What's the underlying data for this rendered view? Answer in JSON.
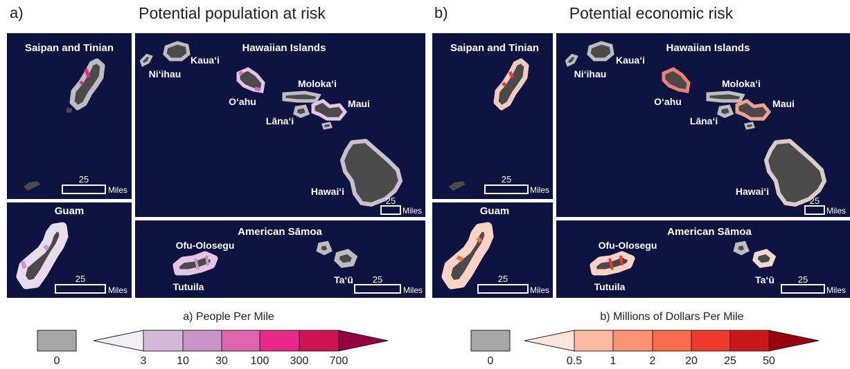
{
  "panels": [
    {
      "letter": "a)",
      "title": "Potential population at risk",
      "insets": {
        "saipan": "Saipan and Tinian",
        "guam": "Guam",
        "hawaii": "Hawaiian Islands",
        "samoa": "American Sāmoa"
      },
      "islands": [
        "Ni‘ihau",
        "Kaua‘i",
        "O‘ahu",
        "Moloka‘i",
        "Maui",
        "Lāna‘i",
        "Hawai‘i",
        "Ofu-Olosegu",
        "Tutuila",
        "Ta‘ū"
      ],
      "scale": {
        "value": "25",
        "unit": "Miles"
      },
      "legend": {
        "title": "a) People Per Mile",
        "zero_label": "0",
        "ticks": [
          "3",
          "10",
          "30",
          "100",
          "300",
          "700"
        ],
        "colors": [
          "#f3eef6",
          "#d4b8da",
          "#c994c7",
          "#df65b0",
          "#e7298a",
          "#ce1256",
          "#91003f"
        ]
      }
    },
    {
      "letter": "b)",
      "title": "Potential economic risk",
      "insets": {
        "saipan": "Saipan and Tinian",
        "guam": "Guam",
        "hawaii": "Hawaiian Islands",
        "samoa": "American Sāmoa"
      },
      "islands": [
        "Ni‘ihau",
        "Kaua‘i",
        "O‘ahu",
        "Moloka‘i",
        "Maui",
        "Lāna‘i",
        "Hawai‘i",
        "Ofu-Olosegu",
        "Tutuila",
        "Ta‘ū"
      ],
      "scale": {
        "value": "25",
        "unit": "Miles"
      },
      "legend": {
        "title": "b) Millions of Dollars Per Mile",
        "zero_label": "0",
        "ticks": [
          "0.5",
          "1",
          "2",
          "20",
          "25",
          "50"
        ],
        "colors": [
          "#fee5d9",
          "#fcbba1",
          "#fc9272",
          "#fb6a4a",
          "#ef3b2c",
          "#cb181d",
          "#99000d"
        ]
      }
    }
  ],
  "colors": {
    "ocean": "#0e1442",
    "land": "#4a4a4a",
    "coast_zero": "#bdbdbd"
  }
}
